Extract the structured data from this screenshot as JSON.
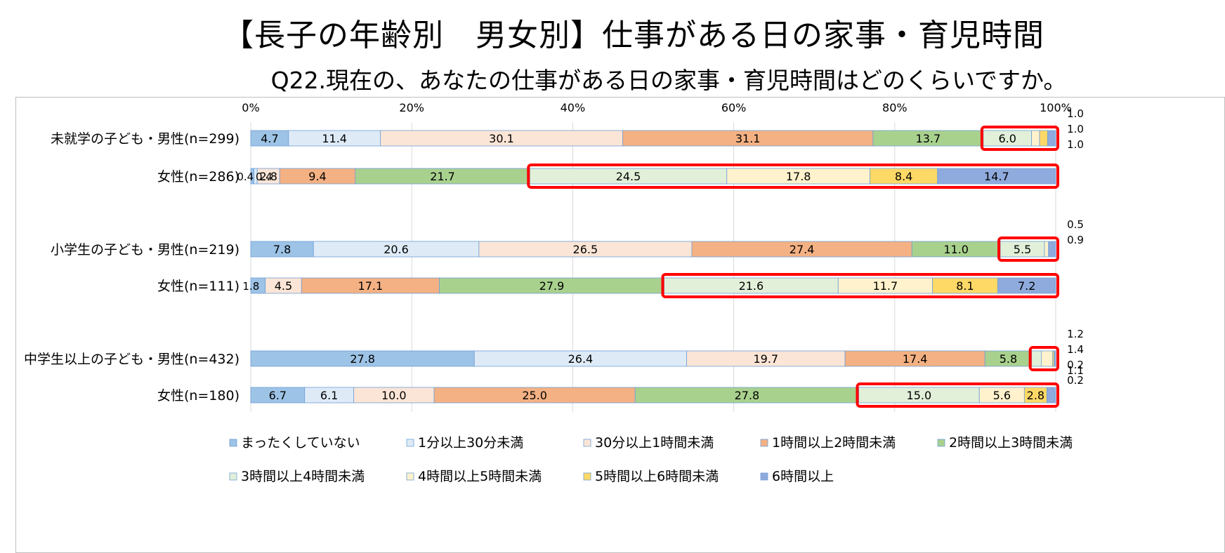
{
  "title": "【長子の年齢別　男女別】仕事がある日の家事・育児時間",
  "subtitle": "Q22.現在の、あなたの仕事がある日の家事・育児時間はどのくらいですか。",
  "chart_data": {
    "type": "bar",
    "orientation": "horizontal",
    "stacked": true,
    "unit": "%",
    "x_ticks": [
      "0%",
      "20%",
      "40%",
      "60%",
      "80%",
      "100%"
    ],
    "xlim": [
      0,
      100
    ],
    "grid": true,
    "legend_position": "bottom",
    "categories": [
      "未就学の子ども・男性(n=299)",
      "女性(n=286)",
      "小学生の子ども・男性(n=219)",
      "女性(n=111)",
      "中学生以上の子ども・男性(n=432)",
      "女性(n=180)"
    ],
    "series": [
      {
        "name": "まったくしていない",
        "color": "#9dc3e6",
        "values": [
          4.7,
          0.4,
          7.8,
          1.8,
          27.8,
          6.7
        ],
        "labels": [
          "4.7",
          "0.4",
          "7.8",
          "1.8",
          "27.8",
          "6.7"
        ]
      },
      {
        "name": "1分以上30分未満",
        "color": "#deebf7",
        "values": [
          11.4,
          0.4,
          20.6,
          0.0,
          26.4,
          6.1
        ],
        "labels": [
          "11.4",
          "0.4",
          "20.6",
          "",
          "26.4",
          "6.1"
        ]
      },
      {
        "name": "30分以上1時間未満",
        "color": "#fbe5d6",
        "values": [
          30.1,
          2.8,
          26.5,
          4.5,
          19.7,
          10.0
        ],
        "labels": [
          "30.1",
          "2.8",
          "26.5",
          "4.5",
          "19.7",
          "10.0"
        ]
      },
      {
        "name": "1時間以上2時間未満",
        "color": "#f4b183",
        "values": [
          31.1,
          9.4,
          27.4,
          17.1,
          17.4,
          25.0
        ],
        "labels": [
          "31.1",
          "9.4",
          "27.4",
          "17.1",
          "17.4",
          "25.0"
        ]
      },
      {
        "name": "2時間以上3時間未満",
        "color": "#a9d18e",
        "values": [
          13.7,
          21.7,
          11.0,
          27.9,
          5.8,
          27.8
        ],
        "labels": [
          "13.7",
          "21.7",
          "11.0",
          "27.9",
          "5.8",
          "27.8"
        ]
      },
      {
        "name": "3時間以上4時間未満",
        "color": "#e2f0d9",
        "values": [
          6.0,
          24.5,
          5.5,
          21.6,
          1.2,
          15.0
        ],
        "labels": [
          "6.0",
          "24.5",
          "5.5",
          "21.6",
          "1.2",
          "15.0"
        ]
      },
      {
        "name": "4時間以上5時間未満",
        "color": "#fff2cc",
        "values": [
          1.0,
          17.8,
          0.5,
          11.7,
          1.4,
          5.6
        ],
        "labels": [
          "1.0",
          "17.8",
          "0.5",
          "11.7",
          "1.4",
          "5.6"
        ]
      },
      {
        "name": "5時間以上6時間未満",
        "color": "#ffd966",
        "values": [
          1.0,
          8.4,
          0.0,
          8.1,
          0.2,
          2.8
        ],
        "labels": [
          "1.0",
          "8.4",
          "",
          "8.1",
          "0.2",
          "2.8"
        ]
      },
      {
        "name": "6時間以上",
        "color": "#8faadc",
        "values": [
          1.0,
          14.7,
          0.9,
          7.2,
          0.2,
          1.1
        ],
        "labels": [
          "1.0",
          "14.7",
          "0.9",
          "7.2",
          "0.2",
          "1.1"
        ]
      }
    ],
    "highlight_from_series": [
      5,
      5,
      5,
      5,
      5,
      5
    ]
  }
}
